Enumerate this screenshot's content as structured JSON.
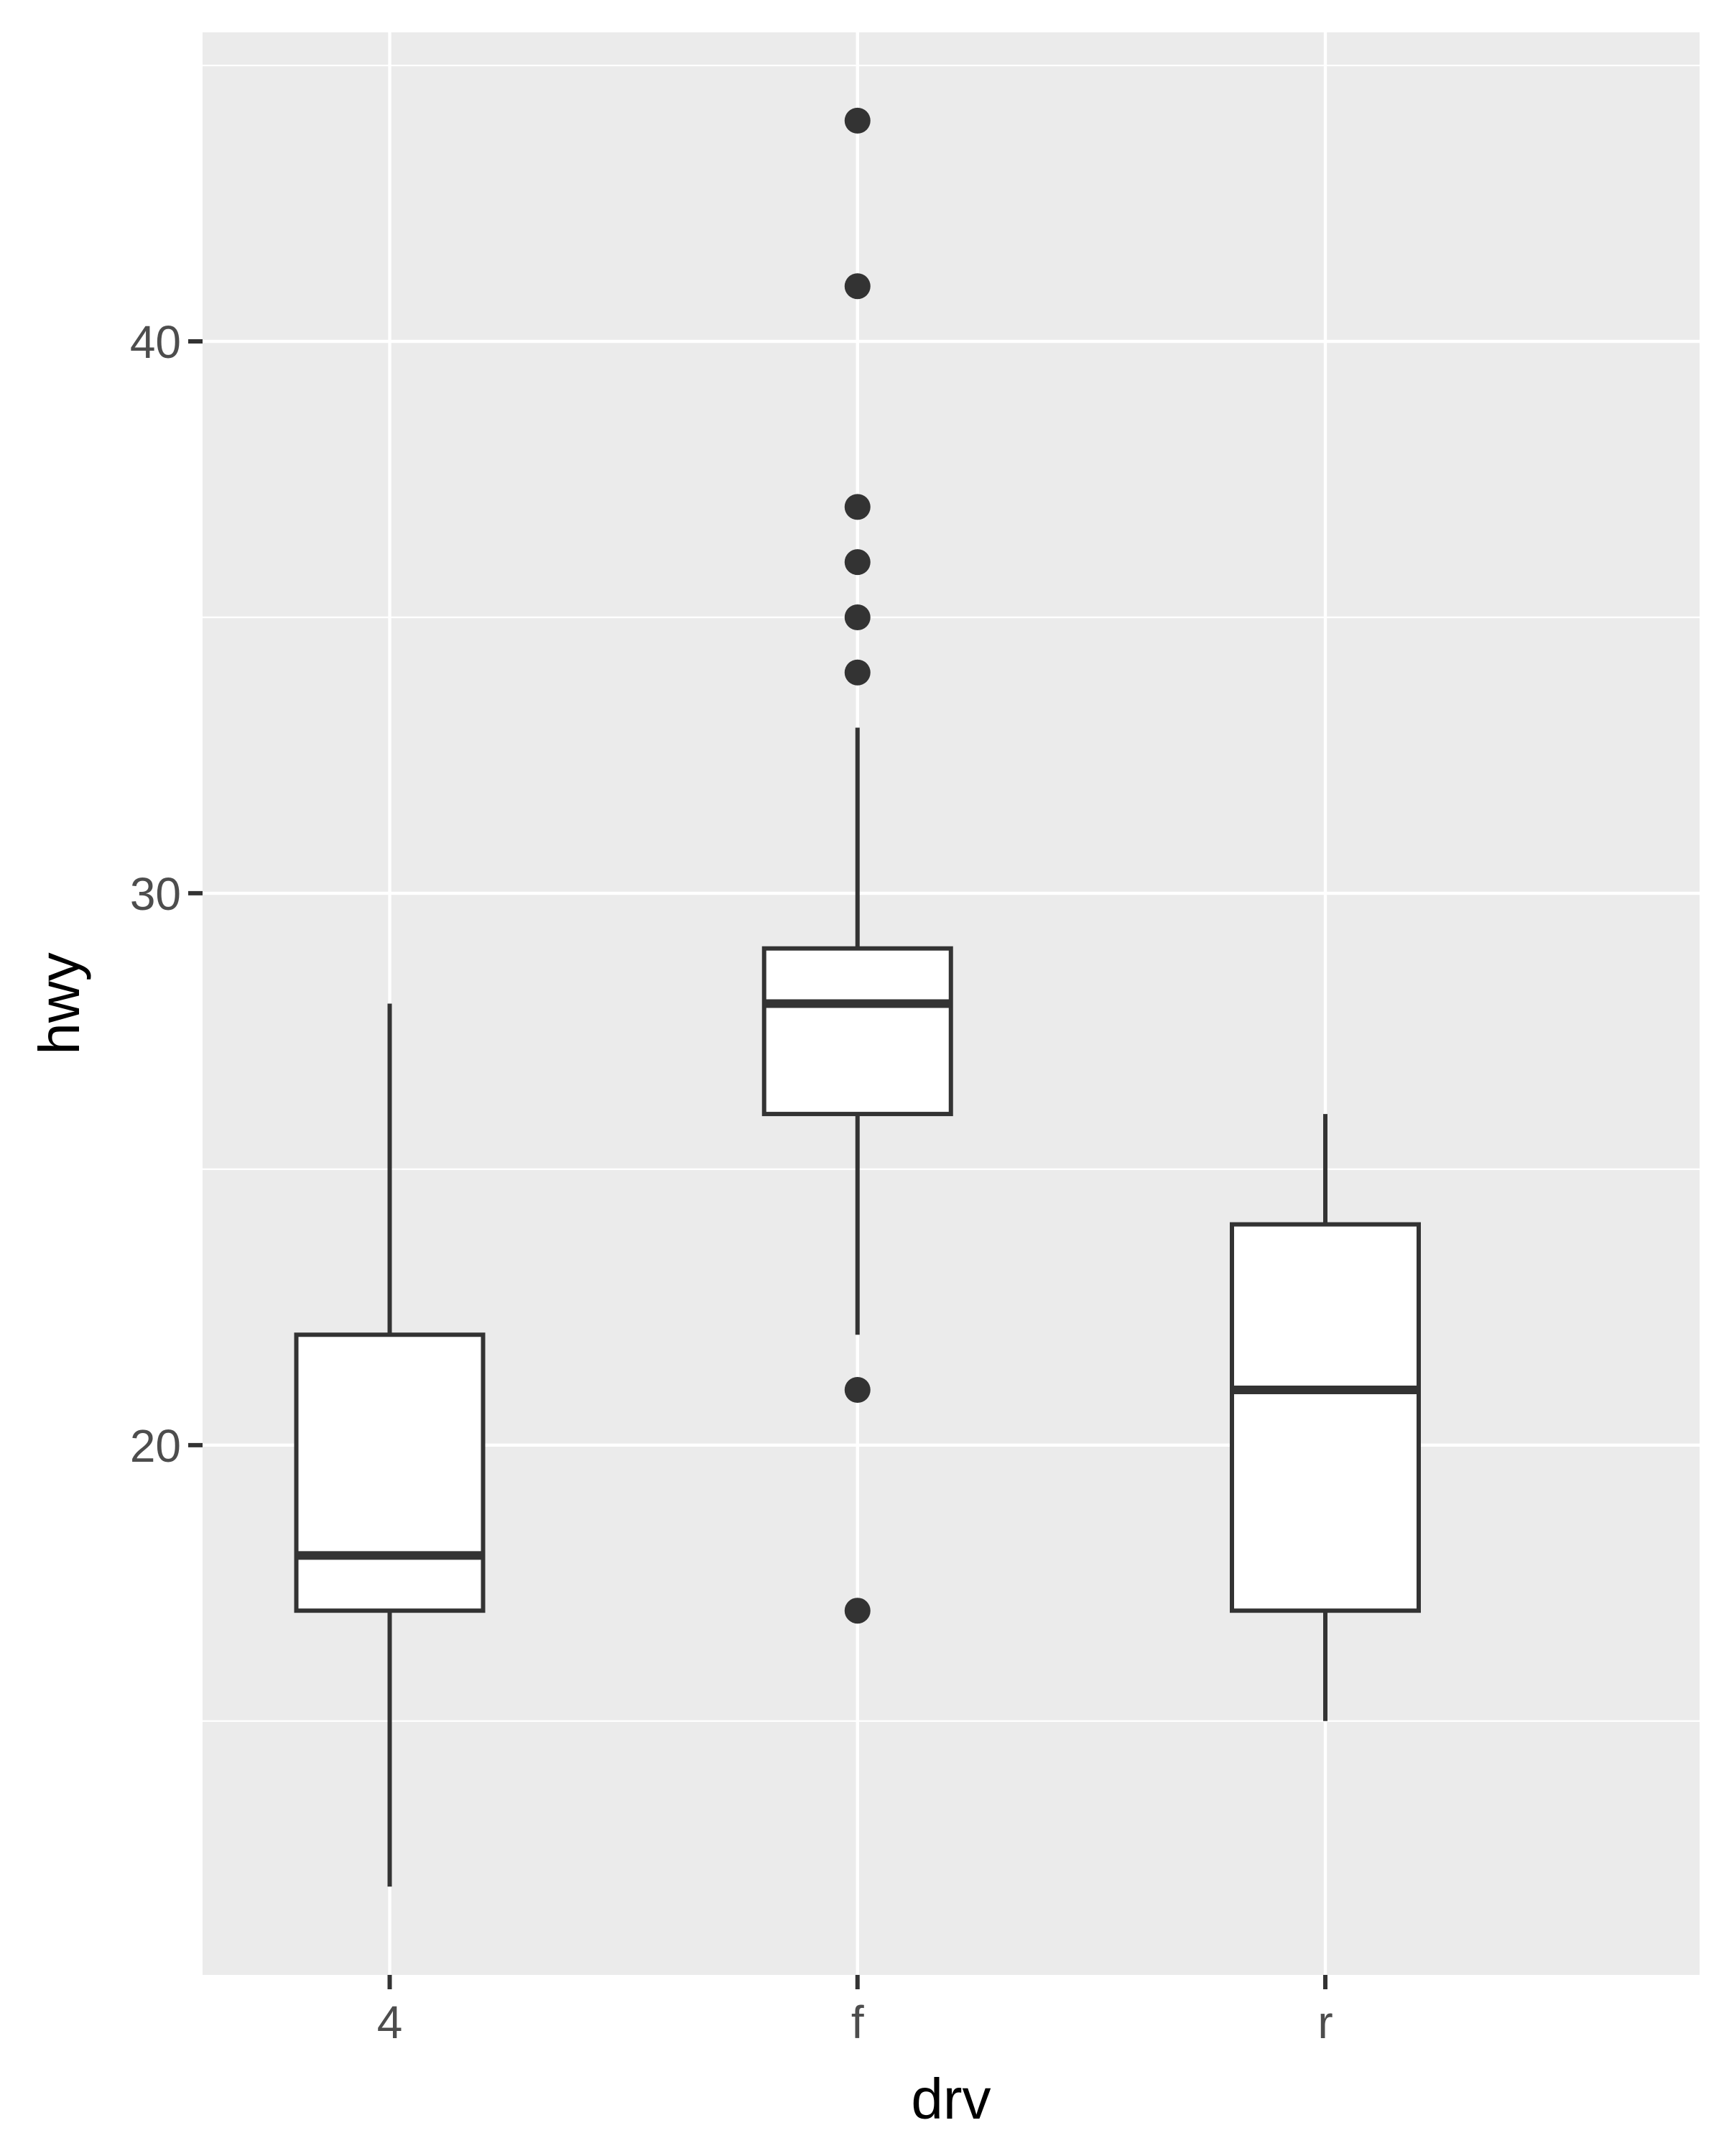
{
  "chart_data": {
    "type": "boxplot",
    "xlabel": "drv",
    "ylabel": "hwy",
    "categories": [
      "4",
      "f",
      "r"
    ],
    "y_ticks": [
      20,
      30,
      40
    ],
    "y_tick_labels": [
      "20",
      "30",
      "40"
    ],
    "ylim": [
      10.4,
      45.6
    ],
    "grid": true,
    "boxes": [
      {
        "category": "4",
        "lower_whisker": 12,
        "q1": 17,
        "median": 18,
        "q3": 22,
        "upper_whisker": 28,
        "outliers": []
      },
      {
        "category": "f",
        "lower_whisker": 22,
        "q1": 26,
        "median": 28,
        "q3": 29,
        "upper_whisker": 33,
        "outliers": [
          44,
          41,
          37,
          36,
          35,
          34,
          21,
          17
        ]
      },
      {
        "category": "r",
        "lower_whisker": 15,
        "q1": 17,
        "median": 21,
        "q3": 24,
        "upper_whisker": 26,
        "outliers": []
      }
    ],
    "colors": {
      "panel_background": "#ebebeb",
      "grid_line": "#ffffff",
      "box_fill": "#ffffff",
      "box_line": "#333333",
      "tick_mark": "#333333",
      "tick_text": "#4d4d4d",
      "title_text": "#000000"
    }
  }
}
